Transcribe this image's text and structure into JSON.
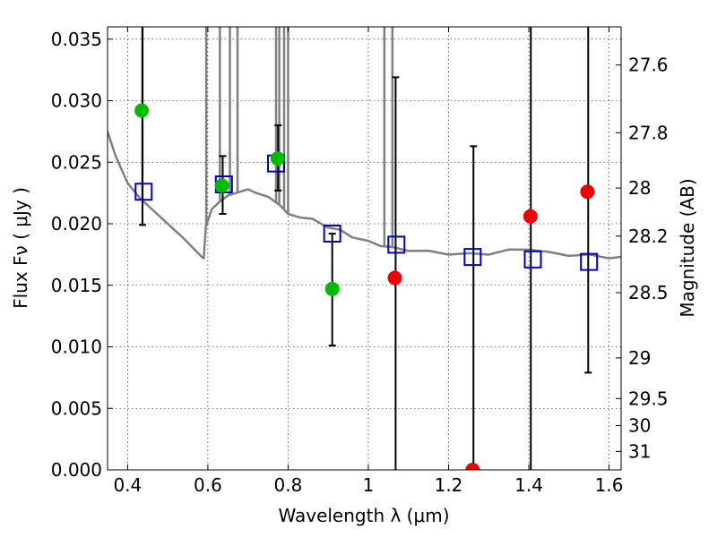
{
  "chart_data": {
    "type": "scatter",
    "xlabel": "Wavelength  λ (μm)",
    "ylabel": "Flux  Fν  ( μJy )",
    "y2label": "Magnitude (AB)",
    "xlim": [
      0.35,
      1.63
    ],
    "ylim": [
      0.0,
      0.036
    ],
    "grid": true,
    "x_ticks": [
      0.4,
      0.6,
      0.8,
      1.0,
      1.2,
      1.4,
      1.6
    ],
    "x_tick_labels": [
      "0.4",
      "0.6",
      "0.8",
      "1",
      "1.2",
      "1.4",
      "1.6"
    ],
    "y_ticks": [
      0.0,
      0.005,
      0.01,
      0.015,
      0.02,
      0.025,
      0.03,
      0.035
    ],
    "y_tick_labels": [
      "0.000",
      "0.005",
      "0.010",
      "0.015",
      "0.020",
      "0.025",
      "0.030",
      "0.035"
    ],
    "y2_ticks": [
      {
        "label": "27.6",
        "flux": 0.0329
      },
      {
        "label": "27.8",
        "flux": 0.0274
      },
      {
        "label": "28",
        "flux": 0.0229
      },
      {
        "label": "28.2",
        "flux": 0.019
      },
      {
        "label": "28.5",
        "flux": 0.0144
      },
      {
        "label": "29",
        "flux": 0.0091
      },
      {
        "label": "29.5",
        "flux": 0.0058
      },
      {
        "label": "30",
        "flux": 0.0036
      },
      {
        "label": "31",
        "flux": 0.0015
      }
    ],
    "colors": {
      "sed": "#808080",
      "model": "#0000c8",
      "detected": "#00bb00",
      "upper": "#ee0000",
      "errorbar": "#000000"
    },
    "series": [
      {
        "kind": "line",
        "x": [
          0.35,
          0.37,
          0.4,
          0.43,
          0.46,
          0.5,
          0.54,
          0.57,
          0.585,
          0.59,
          0.595,
          0.61,
          0.63,
          0.65,
          0.68,
          0.7,
          0.72,
          0.75,
          0.78,
          0.8,
          0.83,
          0.86,
          0.9,
          0.93,
          0.96,
          1.0,
          1.03,
          1.06,
          1.1,
          1.15,
          1.2,
          1.25,
          1.3,
          1.35,
          1.4,
          1.45,
          1.5,
          1.55,
          1.6,
          1.63
        ],
        "y": [
          0.0275,
          0.0255,
          0.0233,
          0.0221,
          0.0212,
          0.02,
          0.0188,
          0.0178,
          0.0173,
          0.0172,
          0.0198,
          0.0212,
          0.0218,
          0.0223,
          0.0226,
          0.0228,
          0.0225,
          0.0222,
          0.0215,
          0.0208,
          0.0205,
          0.0203,
          0.0198,
          0.0194,
          0.019,
          0.0185,
          0.0183,
          0.018,
          0.0179,
          0.0177,
          0.0176,
          0.0175,
          0.0176,
          0.0178,
          0.018,
          0.0176,
          0.0175,
          0.0174,
          0.0173,
          0.0172
        ]
      },
      {
        "kind": "emission_lines",
        "x": [
          0.437,
          0.596,
          0.63,
          0.655,
          0.674,
          0.77,
          0.778,
          0.79,
          0.8,
          1.04,
          1.06
        ]
      },
      {
        "kind": "model_points",
        "x": [
          0.44,
          0.64,
          0.77,
          0.91,
          1.07,
          1.26,
          1.41,
          1.55
        ],
        "y": [
          0.0226,
          0.0232,
          0.0249,
          0.0192,
          0.0183,
          0.0173,
          0.0171,
          0.0169
        ]
      },
      {
        "kind": "detections",
        "x": [
          0.435,
          0.635,
          0.774,
          0.91
        ],
        "y": [
          0.0292,
          0.0231,
          0.0253,
          0.0147
        ]
      },
      {
        "kind": "upper_limits",
        "x": [
          1.066,
          1.26,
          1.404,
          1.546
        ],
        "y": [
          0.0156,
          0.0,
          0.0206,
          0.0226
        ]
      },
      {
        "kind": "errorbars",
        "x": [
          0.437,
          0.637,
          0.775,
          0.91,
          1.068,
          1.262,
          1.405,
          1.548
        ],
        "low": [
          0.0199,
          0.0208,
          0.0227,
          0.0101,
          0.0,
          0.0,
          0.0,
          0.0079
        ],
        "high": [
          0.036,
          0.0255,
          0.028,
          0.0192,
          0.0319,
          0.0263,
          0.036,
          0.036
        ]
      }
    ]
  }
}
